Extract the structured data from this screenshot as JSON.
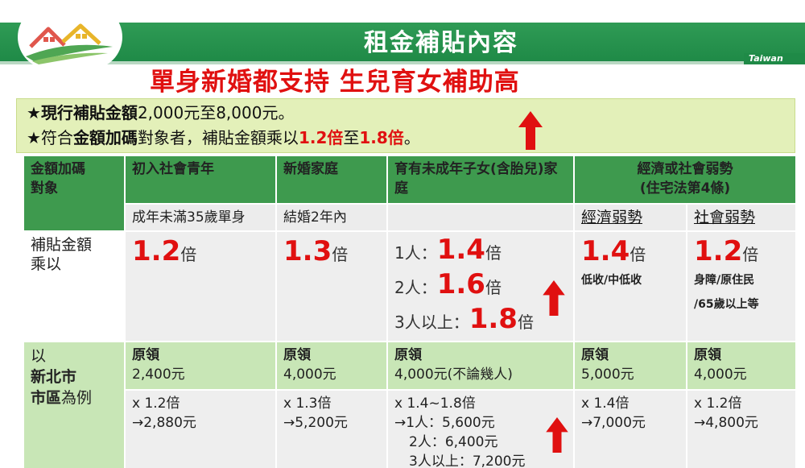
{
  "header": {
    "title": "租金補貼內容",
    "tag": "Taiwan"
  },
  "subtitle": "單身新婚都支持 生兒育女補助高",
  "info": {
    "line1_star": "★",
    "line1_bold": "現行補貼金額",
    "line1_rest": "2,000元至8,000元。",
    "line2_star": "★",
    "line2_a": "符合",
    "line2_bold": "金額加碼",
    "line2_b": "對象者，補貼金額乘以",
    "line2_red1": "1.2倍",
    "line2_c": "至",
    "line2_red2": "1.8倍",
    "line2_end": "。"
  },
  "table": {
    "headers": {
      "col0": "金額加碼\n對象",
      "col1": "初入社會青年",
      "col2": "新婚家庭",
      "col3": "育有未成年子女(含胎兒)家庭",
      "col4": "經濟或社會弱勢\n(住宅法第4條)"
    },
    "sub": {
      "col1": "成年未滿35歲單身",
      "col2": "結婚2年內",
      "col4a": "經濟弱勢",
      "col4b": "社會弱勢"
    },
    "multiplier_row": {
      "label": "補貼金額\n乘以",
      "col1_num": "1.2",
      "col2_num": "1.3",
      "col3": [
        {
          "prefix": "1人：",
          "num": "1.4"
        },
        {
          "prefix": "2人：",
          "num": "1.6"
        },
        {
          "prefix": "3人以上：",
          "num": "1.8"
        }
      ],
      "col4a_num": "1.4",
      "col4a_note": "低收/中低收",
      "col4b_num": "1.2",
      "col4b_note1": "身障/原住民",
      "col4b_note2": "/65歲以上等",
      "unit": "倍"
    },
    "example_row": {
      "label_a": "以",
      "label_b": "新北市",
      "label_c": "市區",
      "label_d": "為例",
      "orig_label": "原領",
      "col1_orig": "2,400元",
      "col2_orig": "4,000元",
      "col3_orig": "4,000元(不論幾人)",
      "col4a_orig": "5,000元",
      "col4b_orig": "4,000元",
      "col1_calc": [
        "x 1.2倍",
        "→2,880元"
      ],
      "col2_calc": [
        "x 1.3倍",
        "→5,200元"
      ],
      "col3_calc": [
        "x 1.4~1.8倍",
        "→1人：5,600元",
        "2人：6,400元",
        "3人以上：7,200元"
      ],
      "col4a_calc": [
        "x 1.4倍",
        "→7,000元"
      ],
      "col4b_calc": [
        "x 1.2倍",
        "→4,800元"
      ]
    }
  },
  "colors": {
    "header_green": "#1f8a47",
    "table_header": "#3e9a4e",
    "light_green": "#c8e6b6",
    "info_bg": "#e3f0b9",
    "red": "#e01010"
  }
}
